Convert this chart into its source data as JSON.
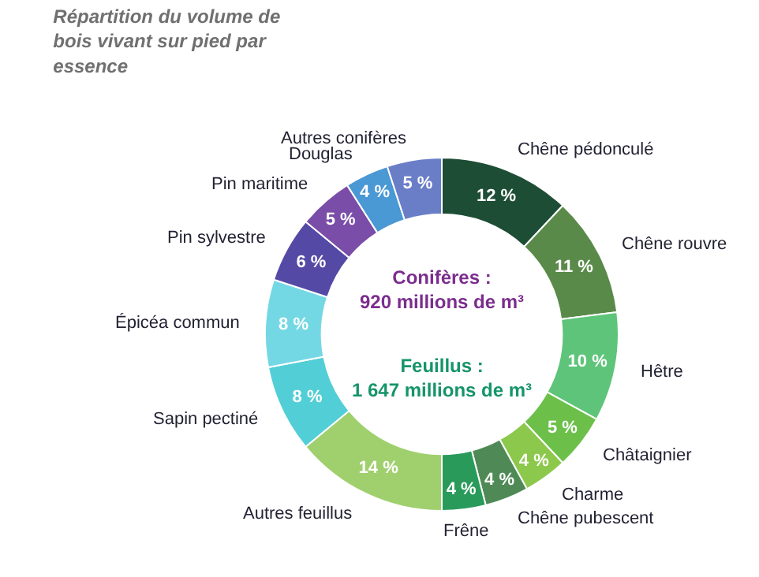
{
  "chart_data": {
    "type": "donut",
    "title": "Répartition du volume de bois vivant sur pied par essence",
    "categories": [
      "Chêne pédonculé",
      "Chêne rouvre",
      "Hêtre",
      "Châtaignier",
      "Charme",
      "Chêne pubescent",
      "Frêne",
      "Autres feuillus",
      "Sapin pectiné",
      "Épicéa commun",
      "Pin sylvestre",
      "Pin maritime",
      "Douglas",
      "Autres conifères"
    ],
    "values": [
      12,
      11,
      10,
      5,
      4,
      4,
      4,
      14,
      8,
      8,
      6,
      5,
      4,
      5
    ],
    "value_labels": [
      "12 %",
      "11 %",
      "10 %",
      "5 %",
      "4 %",
      "4 %",
      "4 %",
      "14 %",
      "8 %",
      "8 %",
      "6 %",
      "5 %",
      "4 %",
      "5 %"
    ],
    "colors": [
      "#1e4d35",
      "#5a8a4a",
      "#5ec47a",
      "#6cc04a",
      "#8cc84b",
      "#4f8a56",
      "#2a9a5a",
      "#a0d06e",
      "#52ced6",
      "#74d8e4",
      "#5549a6",
      "#7a4da8",
      "#4a98d4",
      "#6a7ec8"
    ],
    "annotations": [
      "Conifères : 920 millions de m³",
      "Feuillus : 1 647 millions de m³"
    ],
    "legend": false
  }
}
